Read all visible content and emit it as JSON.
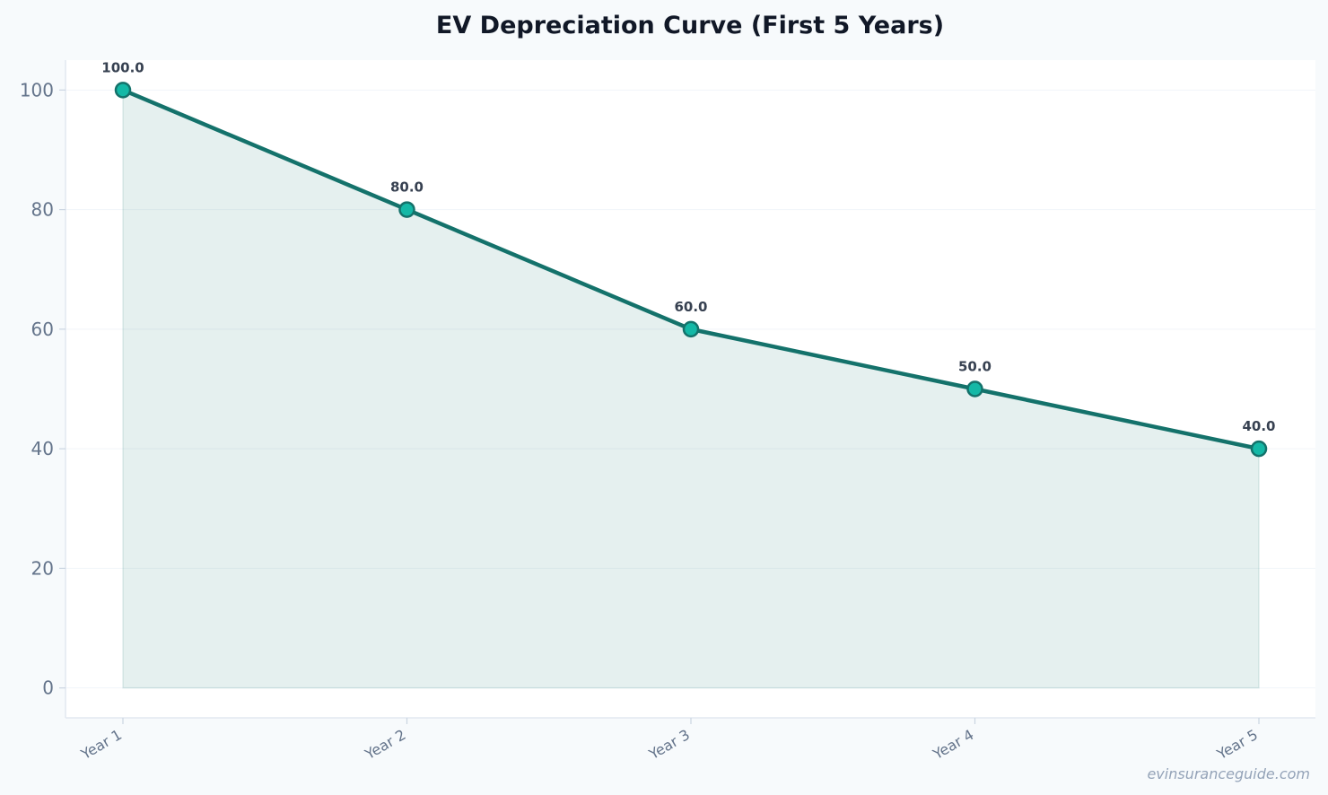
{
  "chart_data": {
    "type": "line",
    "title": "EV Depreciation Curve (First 5 Years)",
    "xlabel": "",
    "ylabel": "",
    "categories": [
      "Year 1",
      "Year 2",
      "Year 3",
      "Year 4",
      "Year 5"
    ],
    "series": [
      {
        "values": [
          100.0,
          80.0,
          60.0,
          50.0,
          40.0
        ]
      }
    ],
    "data_labels": [
      "100.0",
      "80.0",
      "60.0",
      "50.0",
      "40.0"
    ],
    "ylim": [
      -5,
      105
    ],
    "yticks": [
      0,
      20,
      40,
      60,
      80,
      100
    ],
    "grid": true,
    "area_fill": true,
    "colors": {
      "line": "#14726b",
      "marker_fill": "#14b8a6",
      "area": "#14726b",
      "plot_bg": "#ffffff",
      "page_bg": "#f7fafc"
    }
  },
  "watermark": "evinsuranceguide.com"
}
